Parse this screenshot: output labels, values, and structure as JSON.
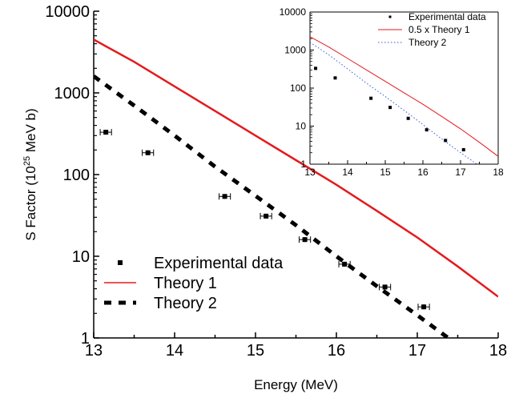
{
  "chart_data": [
    {
      "type": "line",
      "xlabel": "Energy (MeV)",
      "ylabel_prefix": "S Factor (10",
      "ylabel_exp": "25",
      "ylabel_suffix": " MeV b)",
      "xlim": [
        13,
        18
      ],
      "ylim": [
        1,
        10000
      ],
      "yscale": "log",
      "xticks": [
        "13",
        "14",
        "15",
        "16",
        "17",
        "18"
      ],
      "yticks": [
        "1",
        "10",
        "100",
        "1000",
        "10000"
      ],
      "legend_position": "bottom-left",
      "experimental": {
        "name": "Experimental data",
        "x": [
          13.15,
          13.67,
          14.62,
          15.13,
          15.61,
          16.1,
          16.6,
          17.08
        ],
        "y": [
          330,
          185,
          54,
          31,
          16,
          8,
          4.2,
          2.4
        ],
        "xerr": [
          0.07,
          0.07,
          0.07,
          0.07,
          0.07,
          0.07,
          0.07,
          0.07
        ]
      },
      "series": [
        {
          "name": "Theory 1",
          "color": "#e41a1c",
          "style": "solid",
          "x": [
            13,
            13.5,
            14,
            14.5,
            15,
            15.5,
            16,
            16.5,
            17,
            17.5,
            18
          ],
          "y": [
            4500,
            2400,
            1200,
            600,
            300,
            150,
            75,
            36,
            17,
            7.5,
            3.2
          ]
        },
        {
          "name": "Theory 2",
          "color": "#000000",
          "style": "dashed",
          "x": [
            13,
            13.5,
            14,
            14.5,
            15,
            15.5,
            16,
            16.5,
            17,
            17.5
          ],
          "y": [
            1600,
            700,
            300,
            125,
            55,
            24,
            10,
            4.3,
            1.9,
            0.82
          ]
        }
      ]
    },
    {
      "type": "line",
      "xlim": [
        13,
        18
      ],
      "ylim": [
        1,
        10000
      ],
      "yscale": "log",
      "xticks": [
        "13",
        "14",
        "15",
        "16",
        "17",
        "18"
      ],
      "yticks": [
        "1",
        "10",
        "100",
        "1000",
        "10000"
      ],
      "legend_position": "top-right",
      "experimental": {
        "name": "Experimental data",
        "x": [
          13.15,
          13.67,
          14.62,
          15.13,
          15.61,
          16.1,
          16.6,
          17.08
        ],
        "y": [
          330,
          185,
          54,
          31,
          16,
          8,
          4.2,
          2.4
        ]
      },
      "series": [
        {
          "name": "0.5 x Theory 1",
          "color": "#e41a1c",
          "style": "solid",
          "x": [
            13,
            13.5,
            14,
            14.5,
            15,
            15.5,
            16,
            16.5,
            17,
            17.5,
            18
          ],
          "y": [
            2250,
            1200,
            600,
            300,
            150,
            75,
            37.5,
            18,
            8.5,
            3.75,
            1.6
          ]
        },
        {
          "name": "Theory 2",
          "color": "#3b5bdb",
          "style": "dotted",
          "x": [
            13,
            13.5,
            14,
            14.5,
            15,
            15.5,
            16,
            16.5,
            17,
            17.5,
            17.8
          ],
          "y": [
            1600,
            750,
            320,
            135,
            60,
            26,
            11,
            4.6,
            2.0,
            0.9,
            0.6
          ]
        }
      ]
    }
  ]
}
